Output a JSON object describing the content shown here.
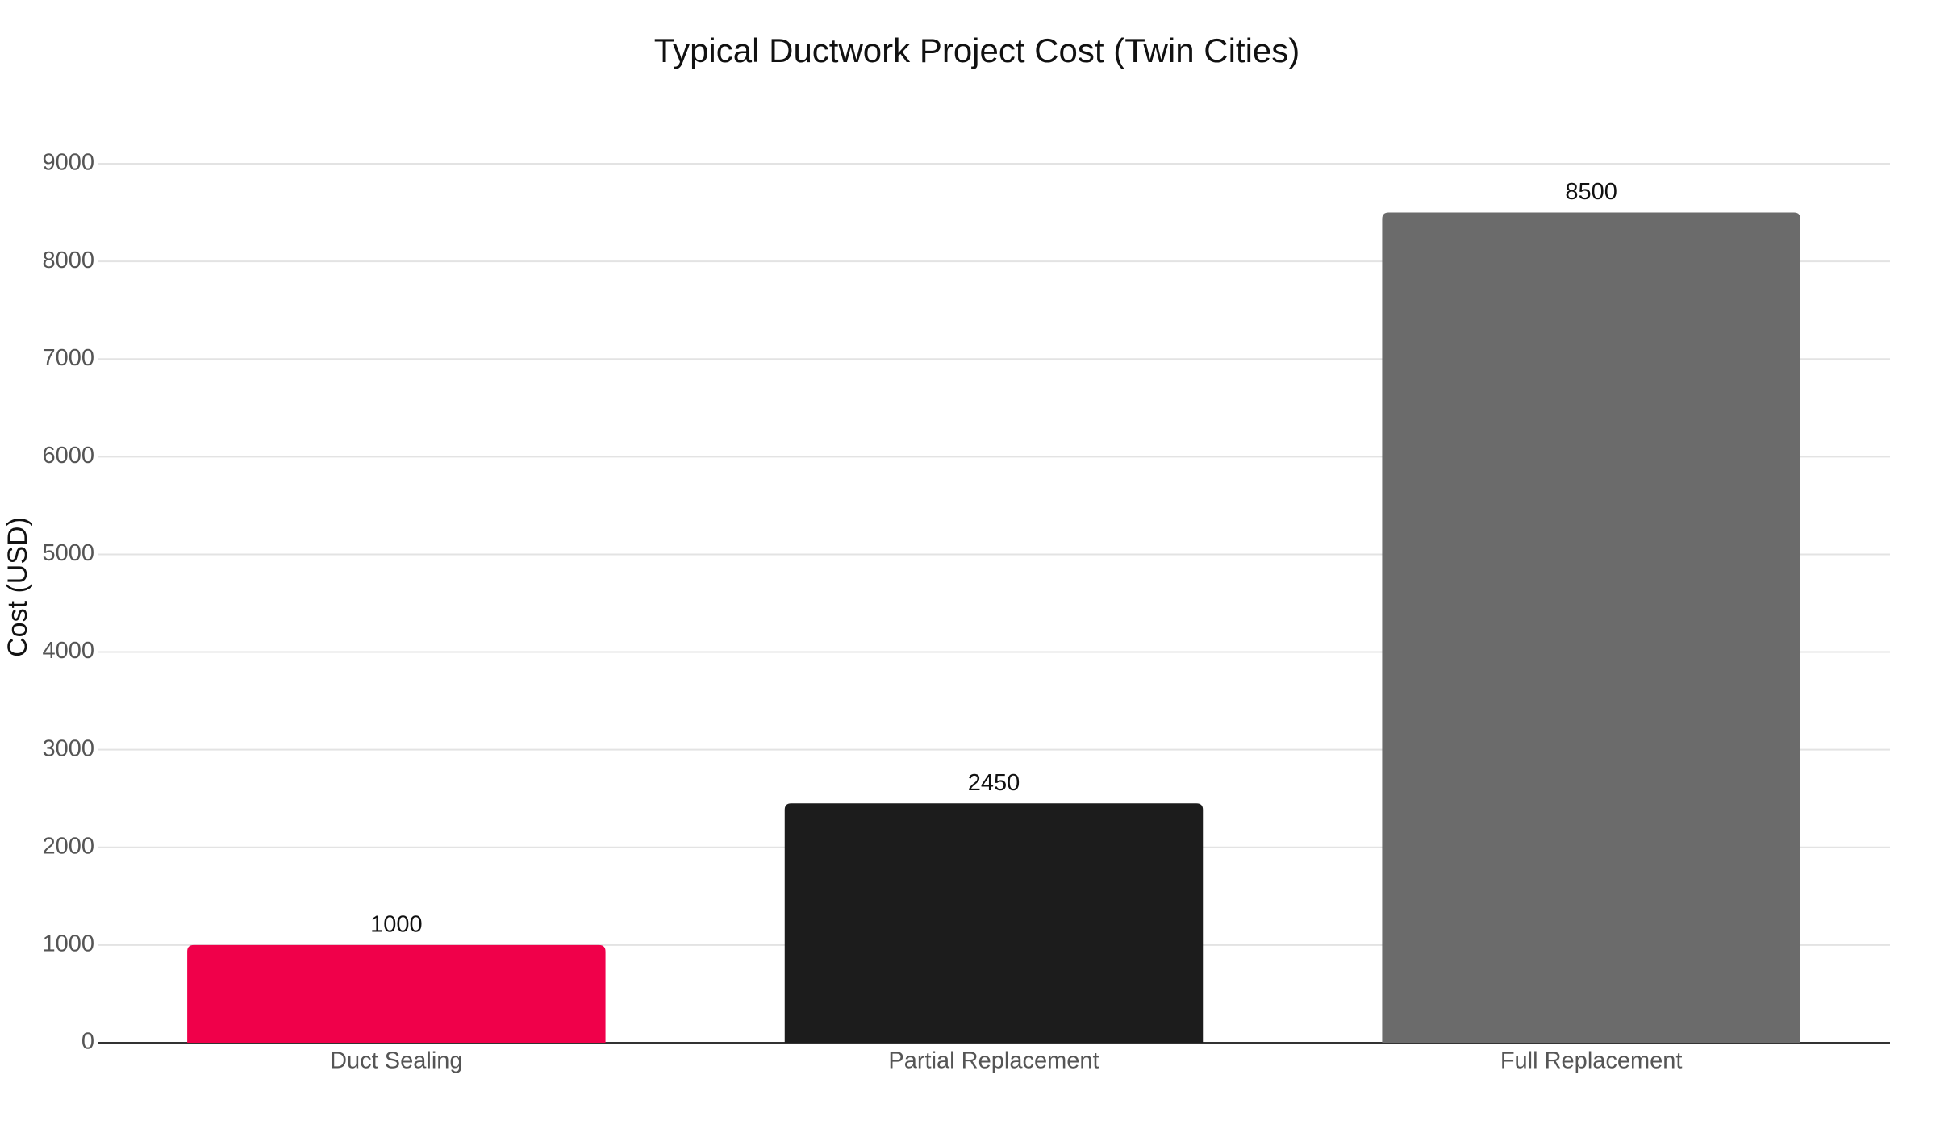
{
  "chart_data": {
    "type": "bar",
    "title": "Typical Ductwork Project Cost (Twin Cities)",
    "y_label": "Cost (USD)",
    "categories": [
      "Duct Sealing",
      "Partial Replacement",
      "Full Replacement"
    ],
    "values": [
      1000,
      2450,
      8500
    ],
    "colors": [
      "#f0004a",
      "#1c1c1c",
      "#6b6b6b"
    ],
    "ylim": [
      0,
      9000
    ],
    "yticks": [
      0,
      1000,
      2000,
      3000,
      4000,
      5000,
      6000,
      7000,
      8000,
      9000
    ],
    "grid": true
  }
}
